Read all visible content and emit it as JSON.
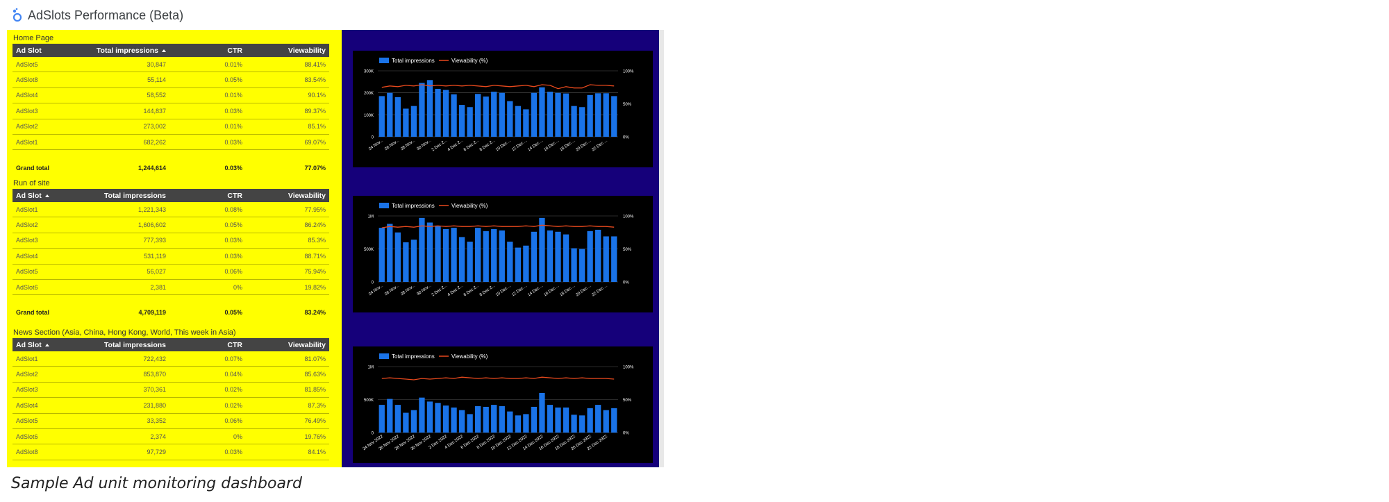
{
  "app": {
    "title": "AdSlots Performance (Beta)",
    "logo_icon": "looker-studio-icon",
    "accent": "#4285f4"
  },
  "caption": "Sample Ad unit monitoring dashboard",
  "colors": {
    "table_bg": "#ffff00",
    "chart_area_bg": "#15007a",
    "chart_bg": "#000000",
    "bar": "#1a73e8",
    "line": "#e8491d"
  },
  "sections": [
    {
      "title": "Home Page",
      "columns": [
        "Ad Slot",
        "Total impressions",
        "CTR",
        "Viewability"
      ],
      "sorted_column": 1,
      "rows": [
        [
          "AdSlot5",
          "30,847",
          "0.01%",
          "88.41%"
        ],
        [
          "AdSlot8",
          "55,114",
          "0.05%",
          "83.54%"
        ],
        [
          "AdSlot4",
          "58,552",
          "0.01%",
          "90.1%"
        ],
        [
          "AdSlot3",
          "144,837",
          "0.03%",
          "89.37%"
        ],
        [
          "AdSlot2",
          "273,002",
          "0.01%",
          "85.1%"
        ],
        [
          "AdSlot1",
          "682,262",
          "0.03%",
          "69.07%"
        ]
      ],
      "grand_total": [
        "Grand total",
        "1,244,614",
        "0.03%",
        "77.07%"
      ]
    },
    {
      "title": "Run of site",
      "columns": [
        "Ad Slot",
        "Total impressions",
        "CTR",
        "Viewability"
      ],
      "sorted_column": 0,
      "rows": [
        [
          "AdSlot1",
          "1,221,343",
          "0.08%",
          "77.95%"
        ],
        [
          "AdSlot2",
          "1,606,602",
          "0.05%",
          "86.24%"
        ],
        [
          "AdSlot3",
          "777,393",
          "0.03%",
          "85.3%"
        ],
        [
          "AdSlot4",
          "531,119",
          "0.03%",
          "88.71%"
        ],
        [
          "AdSlot5",
          "56,027",
          "0.06%",
          "75.94%"
        ],
        [
          "AdSlot6",
          "2,381",
          "0%",
          "19.82%"
        ]
      ],
      "grand_total": [
        "Grand total",
        "4,709,119",
        "0.05%",
        "83.24%"
      ]
    },
    {
      "title": "News Section (Asia, China, Hong Kong, World, This week in Asia)",
      "columns": [
        "Ad Slot",
        "Total impressions",
        "CTR",
        "Viewability"
      ],
      "sorted_column": 0,
      "rows": [
        [
          "AdSlot1",
          "722,432",
          "0.07%",
          "81.07%"
        ],
        [
          "AdSlot2",
          "853,870",
          "0.04%",
          "85.63%"
        ],
        [
          "AdSlot3",
          "370,361",
          "0.02%",
          "81.85%"
        ],
        [
          "AdSlot4",
          "231,880",
          "0.02%",
          "87.3%"
        ],
        [
          "AdSlot5",
          "33,352",
          "0.06%",
          "76.49%"
        ],
        [
          "AdSlot6",
          "2,374",
          "0%",
          "19.76%"
        ],
        [
          "AdSlot8",
          "97,729",
          "0.03%",
          "84.1%"
        ]
      ]
    }
  ],
  "chart_data": [
    {
      "type": "bar",
      "legend": [
        "Total impressions",
        "Viewability (%)"
      ],
      "legend_position": "top-left",
      "x_ticks": [
        "24 Nov...",
        "26 Nov...",
        "28 Nov...",
        "30 Nov...",
        "2 Dec 2...",
        "4 Dec 2...",
        "6 Dec 2...",
        "8 Dec 2...",
        "10 Dec ...",
        "12 Dec ...",
        "14 Dec ...",
        "16 Dec ...",
        "18 Dec ...",
        "20 Dec ...",
        "22 Dec ..."
      ],
      "y_ticks": [
        "0",
        "100K",
        "200K",
        "300K"
      ],
      "y2_ticks": [
        "0%",
        "50%",
        "100%"
      ],
      "ylim": [
        0,
        300000
      ],
      "y2lim": [
        0,
        100
      ],
      "grid": true,
      "series": [
        {
          "name": "Total impressions",
          "kind": "bar",
          "values": [
            185000,
            200000,
            180000,
            128000,
            140000,
            245000,
            258000,
            218000,
            213000,
            193000,
            145000,
            135000,
            195000,
            183000,
            205000,
            200000,
            162000,
            140000,
            125000,
            200000,
            225000,
            205000,
            200000,
            197000,
            140000,
            135000,
            190000,
            198000,
            198000,
            185000
          ]
        },
        {
          "name": "Viewability (%)",
          "kind": "line",
          "values": [
            75,
            77,
            76,
            78,
            77,
            79,
            77,
            78,
            77,
            78,
            77,
            78,
            77,
            76,
            78,
            77,
            76,
            77,
            78,
            76,
            79,
            78,
            73,
            76,
            74,
            74,
            79,
            78,
            78,
            77
          ]
        }
      ]
    },
    {
      "type": "bar",
      "legend": [
        "Total impressions",
        "Viewability (%)"
      ],
      "legend_position": "top-left",
      "x_ticks": [
        "24 Nov...",
        "26 Nov...",
        "28 Nov...",
        "30 Nov...",
        "2 Dec 2...",
        "4 Dec 2...",
        "6 Dec 2...",
        "8 Dec 2...",
        "10 Dec ...",
        "12 Dec ...",
        "14 Dec ...",
        "16 Dec ...",
        "18 Dec ...",
        "20 Dec ...",
        "22 Dec ..."
      ],
      "y_ticks": [
        "0",
        "500K",
        "1M"
      ],
      "y2_ticks": [
        "0%",
        "50%",
        "100%"
      ],
      "ylim": [
        0,
        1000000
      ],
      "y2lim": [
        0,
        100
      ],
      "grid": true,
      "series": [
        {
          "name": "Total impressions",
          "kind": "bar",
          "values": [
            820000,
            880000,
            750000,
            600000,
            640000,
            970000,
            900000,
            850000,
            800000,
            820000,
            680000,
            610000,
            820000,
            770000,
            800000,
            780000,
            610000,
            520000,
            550000,
            760000,
            970000,
            780000,
            760000,
            720000,
            510000,
            500000,
            770000,
            790000,
            690000,
            690000
          ]
        },
        {
          "name": "Viewability (%)",
          "kind": "line",
          "values": [
            82,
            84,
            83,
            84,
            83,
            85,
            84,
            85,
            84,
            85,
            84,
            84,
            85,
            84,
            85,
            84,
            84,
            84,
            85,
            84,
            86,
            85,
            84,
            85,
            84,
            84,
            85,
            84,
            84,
            83
          ]
        }
      ]
    },
    {
      "type": "bar",
      "legend": [
        "Total impressions",
        "Viewability (%)"
      ],
      "legend_position": "top-left",
      "x_ticks": [
        "24 Nov 2022",
        "26 Nov 2022",
        "28 Nov 2022",
        "30 Nov 2022",
        "2 Dec 2022",
        "4 Dec 2022",
        "6 Dec 2022",
        "8 Dec 2022",
        "10 Dec 2022",
        "12 Dec 2022",
        "14 Dec 2022",
        "16 Dec 2022",
        "18 Dec 2022",
        "20 Dec 2022",
        "22 Dec 2022"
      ],
      "y_ticks": [
        "0",
        "500K",
        "1M"
      ],
      "y2_ticks": [
        "0%",
        "50%",
        "100%"
      ],
      "ylim": [
        0,
        1000000
      ],
      "y2lim": [
        0,
        100
      ],
      "grid": true,
      "series": [
        {
          "name": "Total impressions",
          "kind": "bar",
          "values": [
            420000,
            510000,
            420000,
            300000,
            340000,
            530000,
            470000,
            450000,
            410000,
            380000,
            340000,
            280000,
            400000,
            390000,
            420000,
            400000,
            320000,
            260000,
            280000,
            390000,
            600000,
            420000,
            380000,
            380000,
            270000,
            260000,
            370000,
            420000,
            340000,
            370000
          ]
        },
        {
          "name": "Viewability (%)",
          "kind": "line",
          "values": [
            82,
            83,
            82,
            81,
            80,
            82,
            81,
            82,
            83,
            82,
            84,
            83,
            82,
            83,
            82,
            83,
            82,
            82,
            83,
            82,
            84,
            83,
            82,
            83,
            82,
            83,
            82,
            82,
            82,
            81
          ]
        }
      ]
    }
  ]
}
